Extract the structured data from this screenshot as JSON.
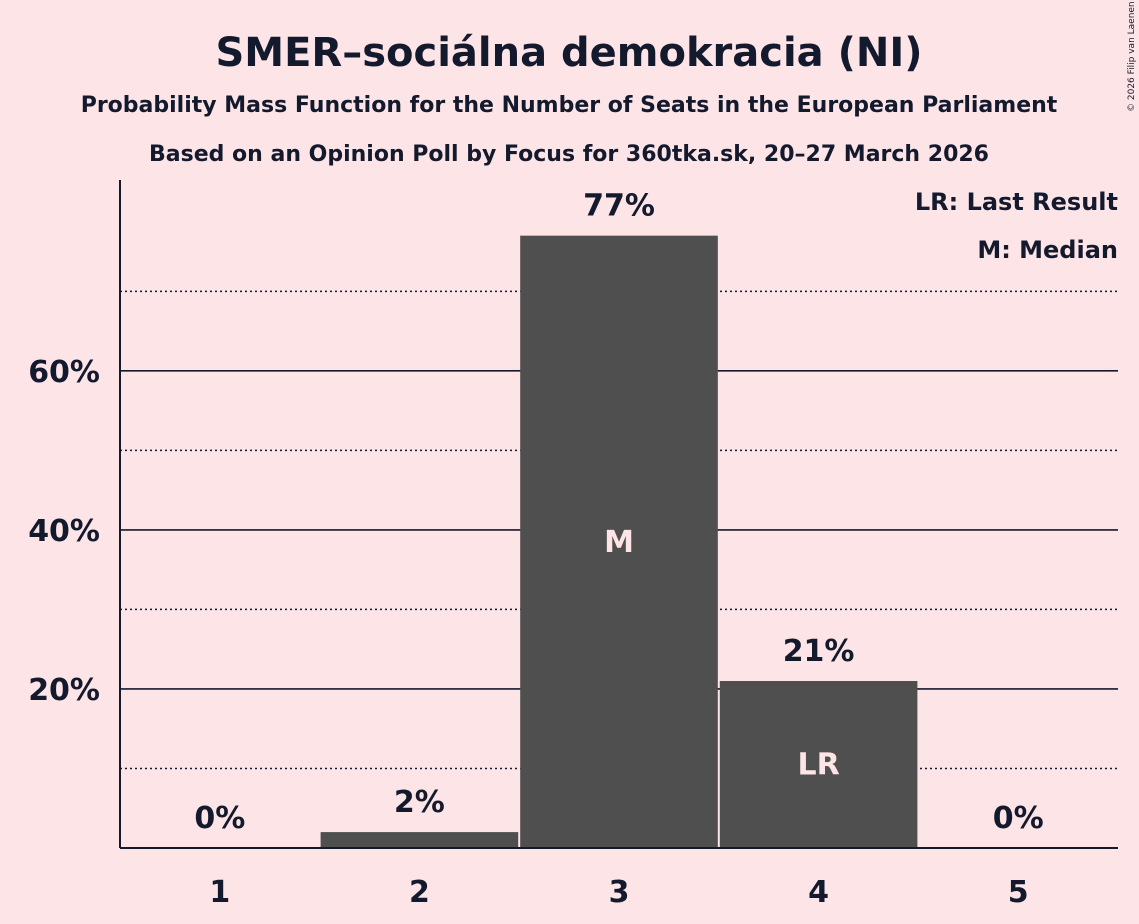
{
  "chart_data": {
    "type": "bar",
    "title": "SMER–sociálna demokracia (NI)",
    "subtitle": "Probability Mass Function for the Number of Seats in the European Parliament",
    "subtitle2": "Based on an Opinion Poll by Focus for 360tka.sk, 20–27 March 2026",
    "categories": [
      "1",
      "2",
      "3",
      "4",
      "5"
    ],
    "values": [
      0,
      2,
      77,
      21,
      0
    ],
    "value_labels": [
      "0%",
      "2%",
      "77%",
      "21%",
      "0%"
    ],
    "inner_labels": [
      "",
      "",
      "M",
      "LR",
      ""
    ],
    "ylim": [
      0,
      84
    ],
    "y_major_ticks": [
      20,
      40,
      60
    ],
    "y_major_tick_labels": [
      "20%",
      "40%",
      "60%"
    ],
    "y_minor_gridlines": [
      10,
      30,
      50,
      70
    ],
    "xlabel": "",
    "ylabel": "",
    "legend": [
      "LR: Last Result",
      "M: Median"
    ],
    "legend_position": "top-right",
    "copyright": "© 2026 Filip van Laenen",
    "colors": {
      "background": "#fde4e6",
      "bar": "#4f4f4f",
      "text": "#141a2e",
      "inner_text": "#fde4e6"
    }
  }
}
